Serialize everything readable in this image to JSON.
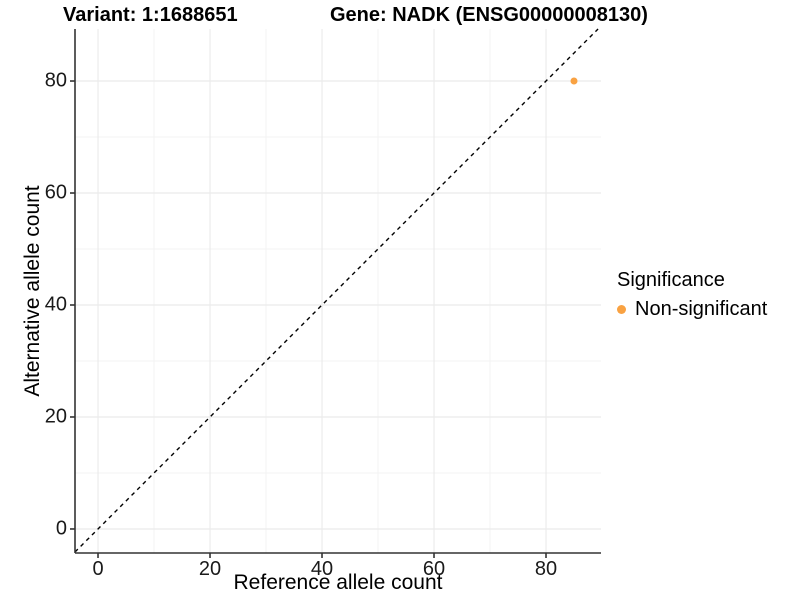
{
  "titles": {
    "variant": "Variant: 1:1688651",
    "gene": "Gene: NADK (ENSG00000008130)"
  },
  "chart_data": {
    "type": "scatter",
    "title": "Variant: 1:1688651   Gene: NADK (ENSG00000008130)",
    "xlabel": "Reference allele count",
    "ylabel": "Alternative allele count",
    "xlim": [
      -4.11,
      89.82
    ],
    "ylim": [
      -4.29,
      89.29
    ],
    "x_ticks": [
      0,
      20,
      40,
      60,
      80
    ],
    "y_ticks": [
      0,
      20,
      40,
      60,
      80
    ],
    "x_minor": [
      10,
      30,
      50,
      70
    ],
    "y_minor": [
      10,
      30,
      50,
      70
    ],
    "grid": true,
    "legend_position": "right",
    "identity_line": {
      "slope": 1,
      "intercept": 0,
      "style": "dashed",
      "color": "#000000"
    },
    "series": [
      {
        "name": "Non-significant",
        "color": "#F9A242",
        "points": [
          {
            "x": 85,
            "y": 80
          }
        ]
      }
    ]
  },
  "legend": {
    "title": "Significance",
    "items": [
      {
        "label": "Non-significant",
        "color": "#F9A242"
      }
    ]
  },
  "colors": {
    "point": "#F9A242",
    "grid_major": "#ebebeb",
    "grid_minor": "#f3f3f3",
    "axis_line": "#333333",
    "tick_text": "#1a1a1a"
  }
}
